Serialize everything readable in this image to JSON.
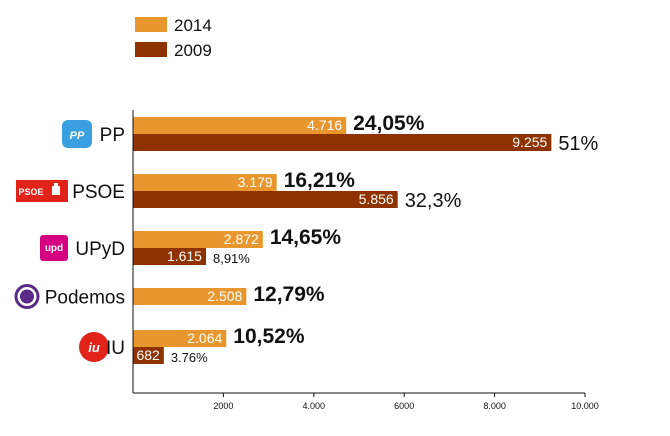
{
  "chart_data": {
    "type": "bar",
    "orientation": "horizontal",
    "title": "",
    "xlabel": "",
    "ylabel": "",
    "xlim": [
      0,
      10000
    ],
    "x_ticks": [
      {
        "value": 2000,
        "label": "2000"
      },
      {
        "value": 4000,
        "label": "4.000"
      },
      {
        "value": 6000,
        "label": "6000"
      },
      {
        "value": 8000,
        "label": "8.000"
      },
      {
        "value": 10000,
        "label": "10.000"
      }
    ],
    "legend": {
      "placement": "top-left"
    },
    "categories": [
      "PP",
      "PSOE",
      "UPyD",
      "Podemos",
      "IU"
    ],
    "series": [
      {
        "name": "2014",
        "color": "#e8962e",
        "values": [
          4716,
          3179,
          2872,
          2508,
          2064
        ],
        "value_labels": [
          "4.716",
          "3.179",
          "2.872",
          "2.508",
          "2.064"
        ],
        "percent_labels": [
          "24,05%",
          "16,21%",
          "14,65%",
          "12,79%",
          "10,52%"
        ]
      },
      {
        "name": "2009",
        "color": "#8e3300",
        "values": [
          9255,
          5856,
          1615,
          null,
          682
        ],
        "value_labels": [
          "9.255",
          "5.856",
          "1.615",
          "",
          "682"
        ],
        "percent_labels": [
          "51%",
          "32,3%",
          "8,91%",
          "",
          "3.76%"
        ]
      }
    ],
    "logos": [
      {
        "party": "PP",
        "icon": "pp-logo-icon",
        "color": "#3aa0e0",
        "text": "PP"
      },
      {
        "party": "PSOE",
        "icon": "psoe-logo-icon",
        "color": "#e2231a",
        "text": "PSOE"
      },
      {
        "party": "UPyD",
        "icon": "upyd-logo-icon",
        "color": "#d5007f",
        "text": "upd"
      },
      {
        "party": "Podemos",
        "icon": "podemos-logo-icon",
        "color": "#5b2a86",
        "text": ""
      },
      {
        "party": "IU",
        "icon": "iu-logo-icon",
        "color": "#e2231a",
        "text": "iu"
      }
    ]
  }
}
